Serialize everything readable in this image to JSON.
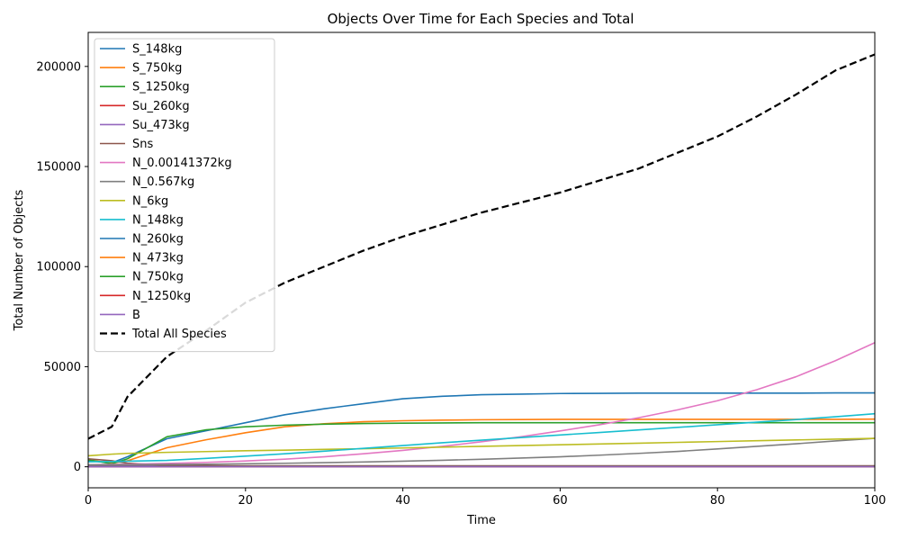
{
  "chart_data": {
    "type": "line",
    "title": "Objects Over Time for Each Species and Total",
    "xlabel": "Time",
    "ylabel": "Total Number of Objects",
    "xlim": [
      0,
      100
    ],
    "ylim": [
      -10500,
      217000
    ],
    "xticks": [
      0,
      20,
      40,
      60,
      80,
      100
    ],
    "yticks": [
      0,
      50000,
      100000,
      150000,
      200000
    ],
    "grid": false,
    "legend_position": "top-left",
    "x": [
      0,
      3,
      5,
      10,
      15,
      20,
      25,
      30,
      35,
      40,
      45,
      50,
      55,
      60,
      65,
      70,
      75,
      80,
      85,
      90,
      95,
      100
    ],
    "series": [
      {
        "name": "S_148kg",
        "color": "#1f77b4",
        "style": "solid",
        "values": [
          3000,
          2000,
          5000,
          14000,
          18000,
          22000,
          26000,
          29000,
          31500,
          34000,
          35200,
          36000,
          36300,
          36600,
          36700,
          36800,
          36800,
          36800,
          36800,
          36800,
          36900,
          36900
        ]
      },
      {
        "name": "S_750kg",
        "color": "#ff7f0e",
        "style": "solid",
        "values": [
          3500,
          1800,
          3000,
          9500,
          13500,
          17000,
          20000,
          21500,
          22500,
          23000,
          23300,
          23500,
          23600,
          23700,
          23700,
          23700,
          23700,
          23700,
          23700,
          23700,
          23700,
          23800
        ]
      },
      {
        "name": "S_1250kg",
        "color": "#2ca02c",
        "style": "solid",
        "values": [
          3500,
          1500,
          4000,
          15000,
          18500,
          20000,
          20800,
          21300,
          21600,
          21800,
          21900,
          22000,
          22000,
          22000,
          22000,
          22000,
          22000,
          22000,
          22000,
          22000,
          22000,
          22000
        ]
      },
      {
        "name": "Su_260kg",
        "color": "#d62728",
        "style": "solid",
        "values": [
          300,
          300,
          300,
          300,
          300,
          300,
          300,
          300,
          300,
          300,
          300,
          300,
          300,
          300,
          300,
          300,
          300,
          300,
          300,
          300,
          300,
          300
        ]
      },
      {
        "name": "Su_473kg",
        "color": "#9467bd",
        "style": "solid",
        "values": [
          400,
          400,
          400,
          400,
          400,
          400,
          400,
          400,
          400,
          400,
          400,
          400,
          400,
          400,
          400,
          400,
          400,
          400,
          400,
          400,
          400,
          400
        ]
      },
      {
        "name": "Sns",
        "color": "#8c564b",
        "style": "solid",
        "values": [
          4000,
          3000,
          1800,
          700,
          600,
          500,
          500,
          500,
          500,
          500,
          500,
          500,
          500,
          500,
          500,
          500,
          500,
          500,
          500,
          500,
          500,
          500
        ]
      },
      {
        "name": "N_0.00141372kg",
        "color": "#e377c2",
        "style": "solid",
        "values": [
          1000,
          1200,
          1300,
          1700,
          2200,
          2900,
          3800,
          5000,
          6500,
          8200,
          10200,
          12500,
          15000,
          17900,
          21000,
          24500,
          28500,
          33000,
          38500,
          45000,
          53000,
          62000
        ]
      },
      {
        "name": "N_0.567kg",
        "color": "#7f7f7f",
        "style": "solid",
        "values": [
          1000,
          1000,
          1050,
          1150,
          1300,
          1500,
          1750,
          2050,
          2400,
          2800,
          3250,
          3750,
          4350,
          5000,
          5800,
          6700,
          7700,
          8900,
          10200,
          11500,
          12900,
          14200
        ]
      },
      {
        "name": "N_6kg",
        "color": "#bcbd22",
        "style": "solid",
        "values": [
          5500,
          6300,
          6700,
          7200,
          7600,
          8000,
          8300,
          8700,
          9000,
          9400,
          9800,
          10200,
          10600,
          11000,
          11400,
          11800,
          12200,
          12600,
          13000,
          13400,
          13800,
          14200
        ]
      },
      {
        "name": "N_148kg",
        "color": "#17becf",
        "style": "solid",
        "values": [
          2500,
          2600,
          2800,
          3200,
          4200,
          5300,
          6500,
          7800,
          9200,
          10600,
          12000,
          13300,
          14600,
          15900,
          17100,
          18400,
          19700,
          21000,
          22300,
          23600,
          25000,
          26500
        ]
      },
      {
        "name": "N_260kg",
        "color": "#1f77b4",
        "style": "solid",
        "values": [
          200,
          200,
          200,
          200,
          200,
          200,
          200,
          200,
          200,
          200,
          200,
          200,
          200,
          200,
          200,
          200,
          200,
          200,
          200,
          200,
          200,
          200
        ]
      },
      {
        "name": "N_473kg",
        "color": "#ff7f0e",
        "style": "solid",
        "values": [
          150,
          150,
          150,
          150,
          150,
          150,
          150,
          150,
          150,
          150,
          150,
          150,
          150,
          150,
          150,
          150,
          150,
          150,
          150,
          150,
          150,
          150
        ]
      },
      {
        "name": "N_750kg",
        "color": "#2ca02c",
        "style": "solid",
        "values": [
          100,
          100,
          100,
          100,
          100,
          100,
          100,
          100,
          100,
          100,
          100,
          100,
          100,
          100,
          100,
          100,
          100,
          100,
          100,
          100,
          100,
          100
        ]
      },
      {
        "name": "N_1250kg",
        "color": "#d62728",
        "style": "solid",
        "values": [
          50,
          50,
          50,
          50,
          50,
          50,
          50,
          50,
          50,
          50,
          50,
          50,
          50,
          50,
          50,
          50,
          50,
          50,
          50,
          50,
          50,
          50
        ]
      },
      {
        "name": "B",
        "color": "#9467bd",
        "style": "solid",
        "values": [
          20,
          20,
          20,
          20,
          20,
          20,
          20,
          20,
          20,
          20,
          20,
          20,
          20,
          20,
          20,
          20,
          20,
          20,
          20,
          20,
          20,
          20
        ]
      },
      {
        "name": "Total All Species",
        "color": "#000000",
        "style": "dashed",
        "values": [
          14000,
          20000,
          35000,
          55000,
          68000,
          82000,
          92000,
          100000,
          108000,
          115000,
          121000,
          127000,
          132000,
          137000,
          143000,
          149000,
          157000,
          165000,
          175000,
          186000,
          198000,
          206000
        ]
      }
    ]
  }
}
